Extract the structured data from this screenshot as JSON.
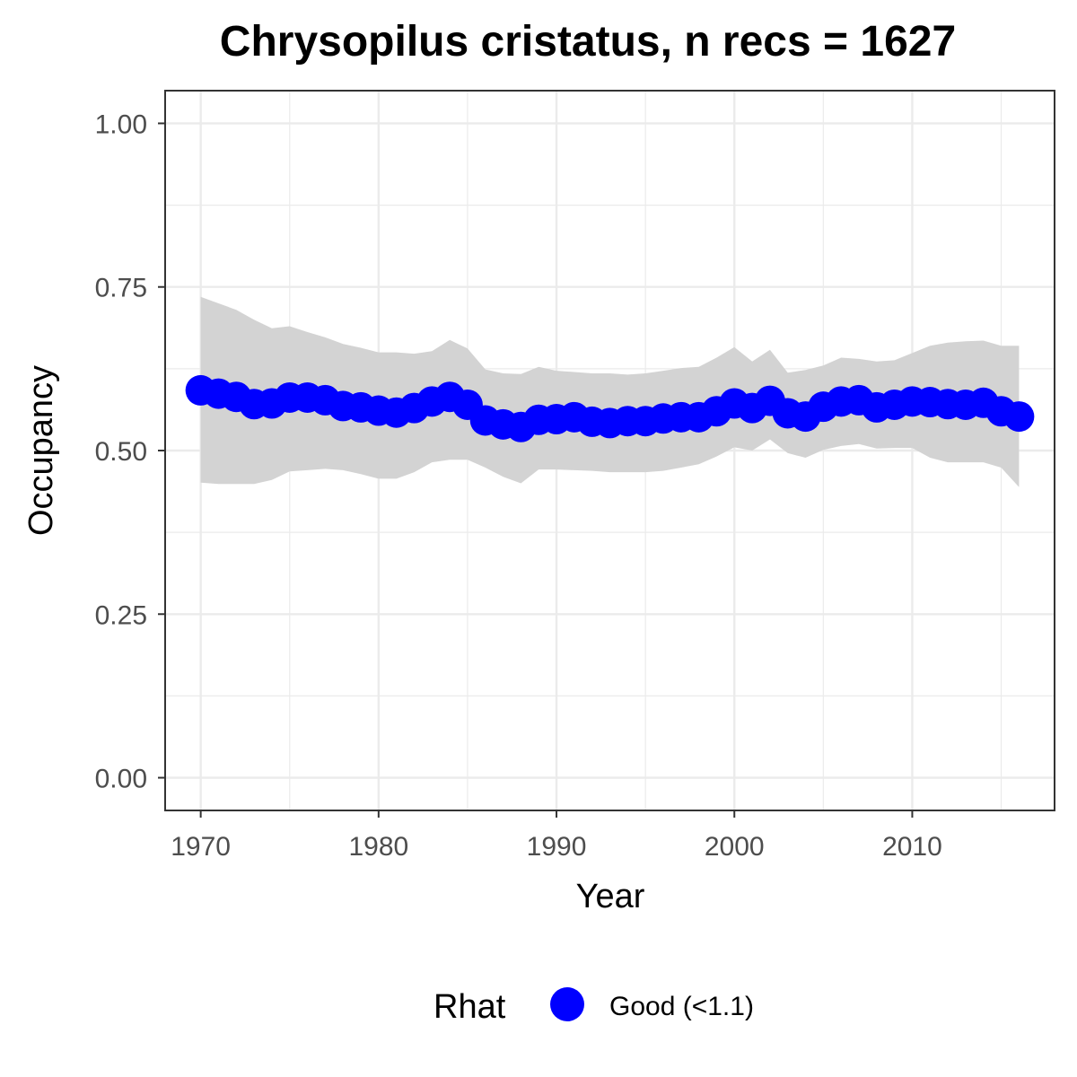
{
  "chart_data": {
    "type": "line",
    "title": "Chrysopilus cristatus, n recs = 1627",
    "xlabel": "Year",
    "ylabel": "Occupancy",
    "xlim": [
      1968,
      2018
    ],
    "ylim": [
      -0.05,
      1.05
    ],
    "x_ticks": [
      "1970",
      "1980",
      "1990",
      "2000",
      "2010"
    ],
    "y_ticks": [
      "0.00",
      "0.25",
      "0.50",
      "0.75",
      "1.00"
    ],
    "grid": true,
    "legend": {
      "title": "Rhat",
      "placement": "bottom",
      "items": [
        {
          "label": "Good (<1.1)",
          "color": "#0000ff"
        }
      ]
    },
    "colors": {
      "points": "#0000ff",
      "ribbon": "#d3d3d3",
      "grid": "#ebebeb",
      "panel_border": "#333333"
    },
    "x": [
      1970,
      1971,
      1972,
      1973,
      1974,
      1975,
      1976,
      1977,
      1978,
      1979,
      1980,
      1981,
      1982,
      1983,
      1984,
      1985,
      1986,
      1987,
      1988,
      1989,
      1990,
      1991,
      1992,
      1993,
      1994,
      1995,
      1996,
      1997,
      1998,
      1999,
      2000,
      2001,
      2002,
      2003,
      2004,
      2005,
      2006,
      2007,
      2008,
      2009,
      2010,
      2011,
      2012,
      2013,
      2014,
      2015,
      2016
    ],
    "series": [
      {
        "values": [
          0.592,
          0.587,
          0.582,
          0.571,
          0.572,
          0.581,
          0.581,
          0.577,
          0.568,
          0.566,
          0.561,
          0.558,
          0.565,
          0.575,
          0.582,
          0.57,
          0.546,
          0.54,
          0.536,
          0.547,
          0.548,
          0.551,
          0.544,
          0.542,
          0.545,
          0.545,
          0.549,
          0.551,
          0.551,
          0.56,
          0.572,
          0.565,
          0.576,
          0.557,
          0.552,
          0.567,
          0.575,
          0.577,
          0.566,
          0.57,
          0.575,
          0.574,
          0.571,
          0.57,
          0.573,
          0.56,
          0.552
        ]
      }
    ],
    "ribbon": {
      "lower": [
        0.451,
        0.449,
        0.449,
        0.449,
        0.455,
        0.468,
        0.47,
        0.472,
        0.47,
        0.464,
        0.457,
        0.457,
        0.467,
        0.482,
        0.486,
        0.486,
        0.474,
        0.46,
        0.45,
        0.471,
        0.471,
        0.47,
        0.469,
        0.467,
        0.467,
        0.467,
        0.469,
        0.474,
        0.479,
        0.491,
        0.505,
        0.5,
        0.517,
        0.496,
        0.489,
        0.501,
        0.507,
        0.51,
        0.503,
        0.504,
        0.504,
        0.489,
        0.482,
        0.482,
        0.482,
        0.474,
        0.444
      ],
      "upper": [
        0.735,
        0.725,
        0.715,
        0.7,
        0.687,
        0.69,
        0.681,
        0.673,
        0.663,
        0.657,
        0.65,
        0.65,
        0.648,
        0.652,
        0.669,
        0.656,
        0.624,
        0.618,
        0.617,
        0.628,
        0.622,
        0.62,
        0.618,
        0.618,
        0.616,
        0.618,
        0.622,
        0.626,
        0.628,
        0.642,
        0.658,
        0.636,
        0.654,
        0.619,
        0.623,
        0.63,
        0.642,
        0.64,
        0.636,
        0.638,
        0.649,
        0.66,
        0.665,
        0.667,
        0.668,
        0.66,
        0.66
      ]
    }
  }
}
